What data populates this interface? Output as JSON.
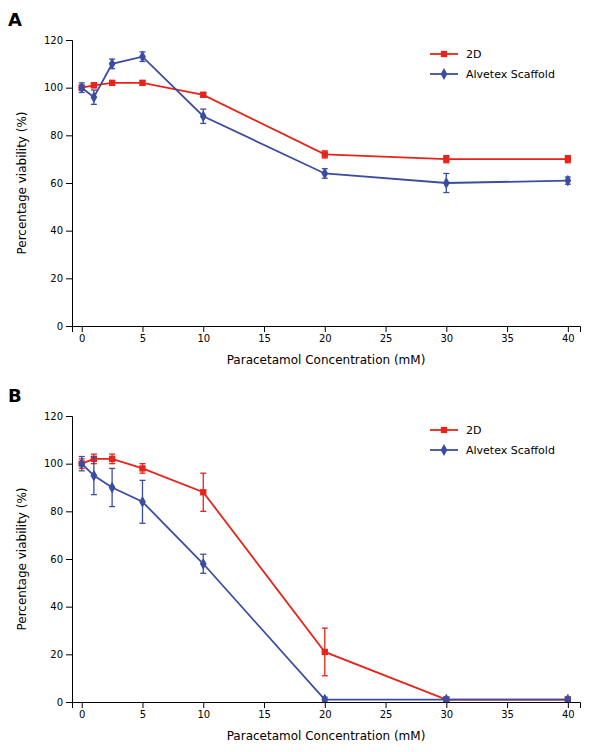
{
  "chart_data": [
    {
      "type": "line",
      "title": "A",
      "xlabel": "Paracetamol Concentration (mM)",
      "ylabel": "Percentage viability (%)",
      "x": [
        0,
        1,
        2.5,
        5,
        10,
        20,
        30,
        40
      ],
      "series": [
        {
          "name": "2D",
          "color": "#e8231a",
          "marker": "square",
          "values": [
            100,
            101,
            102,
            102,
            97,
            72,
            70,
            70
          ],
          "errors": [
            1,
            1,
            1,
            1,
            1,
            1.5,
            1.5,
            1.5
          ]
        },
        {
          "name": "Alvetex Scaffold",
          "color": "#3b4da0",
          "marker": "diamond",
          "values": [
            100,
            96,
            110,
            113,
            88,
            64,
            60,
            61
          ],
          "errors": [
            2,
            3,
            2,
            2,
            3,
            2,
            4,
            1.5
          ]
        }
      ],
      "xlim": [
        -0.8,
        41
      ],
      "xticks": [
        0,
        5,
        10,
        15,
        20,
        25,
        30,
        35,
        40
      ],
      "ylim": [
        0,
        120
      ],
      "yticks": [
        0,
        20,
        40,
        60,
        80,
        100,
        120
      ],
      "grid": false,
      "legend": "upper right"
    },
    {
      "type": "line",
      "title": "B",
      "xlabel": "Paracetamol Concentration (mM)",
      "ylabel": "Percentage viability (%)",
      "x": [
        0,
        1,
        2.5,
        5,
        10,
        20,
        30,
        40
      ],
      "series": [
        {
          "name": "2D",
          "color": "#e8231a",
          "marker": "square",
          "values": [
            100,
            102,
            102,
            98,
            88,
            21,
            1,
            1
          ],
          "errors": [
            2,
            2,
            2,
            2,
            8,
            10,
            1,
            1
          ]
        },
        {
          "name": "Alvetex Scaffold",
          "color": "#3b4da0",
          "marker": "diamond",
          "values": [
            100,
            95,
            90,
            84,
            58,
            1,
            1,
            1
          ],
          "errors": [
            3,
            8,
            8,
            9,
            4,
            1,
            1,
            1
          ]
        }
      ],
      "xlim": [
        -0.8,
        41
      ],
      "xticks": [
        0,
        5,
        10,
        15,
        20,
        25,
        30,
        35,
        40
      ],
      "ylim": [
        0,
        120
      ],
      "yticks": [
        0,
        20,
        40,
        60,
        80,
        100,
        120
      ],
      "grid": false,
      "legend": "upper right"
    }
  ]
}
